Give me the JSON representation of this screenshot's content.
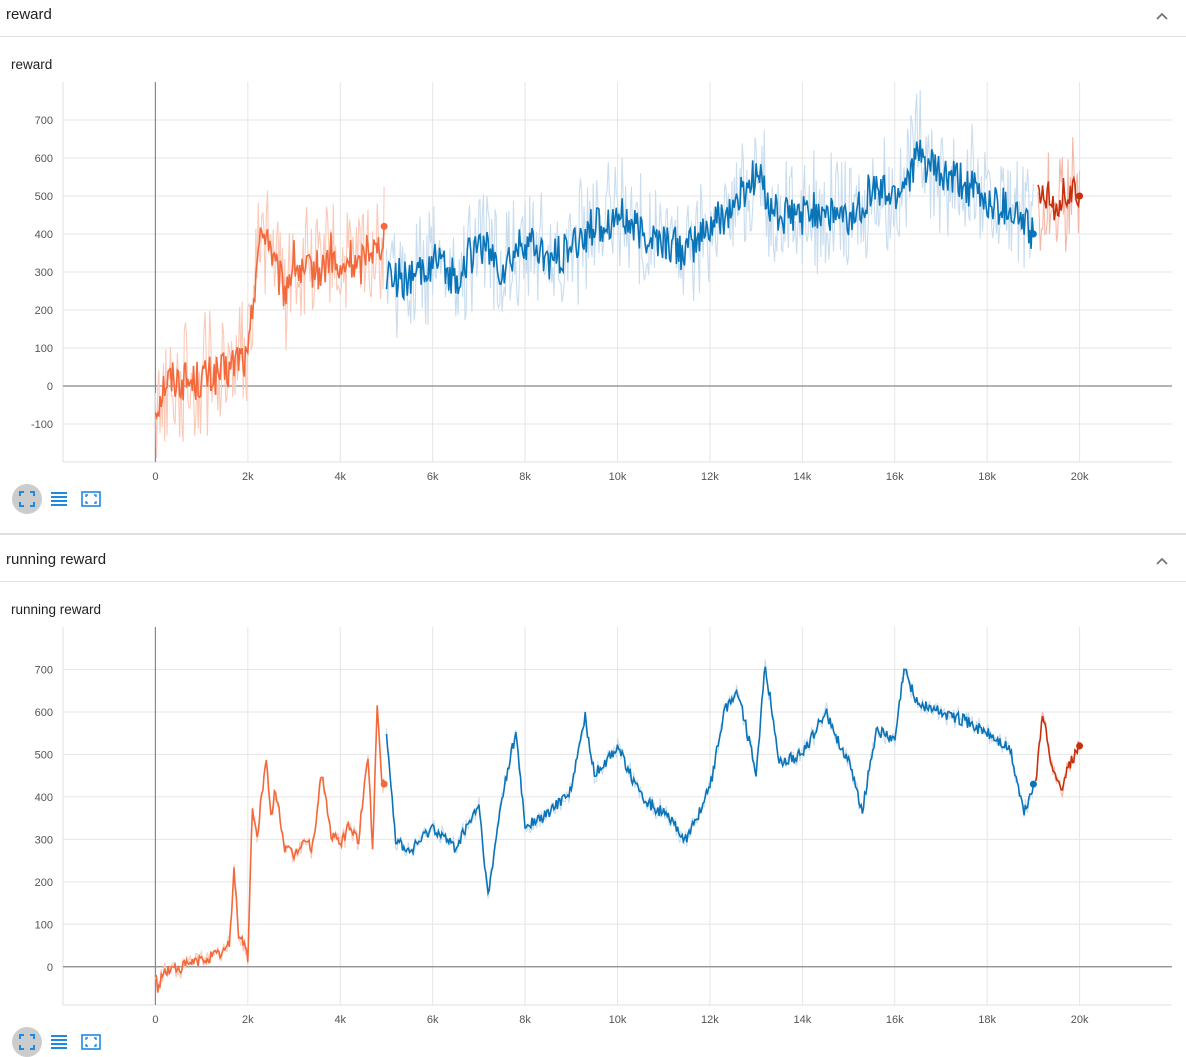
{
  "colors": {
    "orange": "#f4693c",
    "orange_light": "#fbc9b8",
    "blue": "#0a74b8",
    "blue_light": "#c9ddef",
    "red": "#c8300c",
    "red_light": "#f5b8a8",
    "icon_blue": "#1e88e5"
  },
  "icons": {
    "collapse": "chevron-up-icon",
    "expand": "fullscreen-icon",
    "log": "list-icon",
    "fit": "fit-domain-icon"
  },
  "sections": [
    {
      "header": "reward",
      "card_title": "reward",
      "chart_data": {
        "type": "line",
        "title": "reward",
        "xlabel": "",
        "ylabel": "",
        "xlim": [
          -2000,
          22000
        ],
        "ylim": [
          -200,
          800
        ],
        "x_ticks": [
          "0",
          "2k",
          "4k",
          "6k",
          "8k",
          "10k",
          "12k",
          "14k",
          "16k",
          "18k",
          "20k"
        ],
        "y_ticks": [
          "-100",
          "0",
          "100",
          "200",
          "300",
          "400",
          "500",
          "600",
          "700"
        ],
        "grid": true,
        "legend": "none",
        "series": [
          {
            "color": "orange",
            "x": [
              0,
              200,
              400,
              600,
              800,
              1000,
              1200,
              1400,
              1600,
              1800,
              2000,
              2200,
              2400,
              2600,
              2800,
              3000,
              3200,
              3400,
              3600,
              3800,
              4000,
              4200,
              4400,
              4600,
              4800,
              4950
            ],
            "y": [
              -60,
              10,
              20,
              15,
              10,
              20,
              25,
              30,
              40,
              80,
              60,
              350,
              420,
              300,
              250,
              330,
              280,
              310,
              300,
              350,
              280,
              340,
              300,
              380,
              350,
              420
            ]
          },
          {
            "color": "blue",
            "x": [
              5000,
              5500,
              6000,
              6500,
              7000,
              7500,
              8000,
              8500,
              9000,
              9500,
              10000,
              10500,
              11000,
              11500,
              12000,
              12500,
              13000,
              13500,
              14000,
              14500,
              15000,
              15500,
              16000,
              16500,
              17000,
              17500,
              18000,
              18500,
              19000
            ],
            "y": [
              300,
              270,
              330,
              280,
              380,
              300,
              380,
              330,
              360,
              420,
              450,
              400,
              380,
              350,
              420,
              470,
              560,
              440,
              450,
              470,
              430,
              520,
              500,
              600,
              550,
              530,
              480,
              470,
              400
            ]
          },
          {
            "color": "red",
            "x": [
              19100,
              19300,
              19500,
              19700,
              19900,
              20000
            ],
            "y": [
              500,
              520,
              480,
              510,
              490,
              500
            ]
          }
        ]
      }
    },
    {
      "header": "running reward",
      "card_title": "running reward",
      "chart_data": {
        "type": "line",
        "title": "running reward",
        "xlabel": "",
        "ylabel": "",
        "xlim": [
          -2000,
          22000
        ],
        "ylim": [
          -90,
          800
        ],
        "x_ticks": [
          "0",
          "2k",
          "4k",
          "6k",
          "8k",
          "10k",
          "12k",
          "14k",
          "16k",
          "18k",
          "20k"
        ],
        "y_ticks": [
          "0",
          "100",
          "200",
          "300",
          "400",
          "500",
          "600",
          "700"
        ],
        "grid": true,
        "legend": "none",
        "series": [
          {
            "color": "orange",
            "x": [
              0,
              50,
              200,
              400,
              600,
              800,
              1000,
              1200,
              1400,
              1600,
              1700,
              1800,
              1900,
              2000,
              2100,
              2200,
              2300,
              2400,
              2500,
              2600,
              2800,
              3000,
              3200,
              3400,
              3600,
              3800,
              4000,
              4200,
              4400,
              4600,
              4700,
              4800,
              4900,
              4950
            ],
            "y": [
              -20,
              -50,
              -10,
              -5,
              0,
              10,
              15,
              25,
              30,
              50,
              230,
              80,
              60,
              20,
              380,
              300,
              410,
              480,
              350,
              420,
              280,
              260,
              300,
              280,
              460,
              310,
              290,
              330,
              300,
              500,
              280,
              620,
              440,
              430
            ]
          },
          {
            "color": "blue",
            "x": [
              5000,
              5200,
              5500,
              6000,
              6500,
              7000,
              7200,
              7500,
              7800,
              8000,
              8500,
              9000,
              9300,
              9500,
              10000,
              10500,
              11000,
              11500,
              12000,
              12300,
              12600,
              13000,
              13200,
              13500,
              14000,
              14500,
              15000,
              15300,
              15600,
              16000,
              16200,
              16500,
              17000,
              17500,
              18000,
              18500,
              18800,
              19000
            ],
            "y": [
              560,
              300,
              270,
              330,
              280,
              380,
              160,
              400,
              550,
              330,
              360,
              420,
              590,
              450,
              520,
              400,
              360,
              300,
              420,
              600,
              650,
              460,
              710,
              480,
              500,
              600,
              480,
              370,
              560,
              530,
              700,
              620,
              600,
              580,
              550,
              510,
              360,
              430
            ]
          },
          {
            "color": "red",
            "x": [
              19050,
              19200,
              19400,
              19600,
              19800,
              20000
            ],
            "y": [
              430,
              600,
              460,
              420,
              480,
              520
            ]
          }
        ]
      }
    }
  ]
}
